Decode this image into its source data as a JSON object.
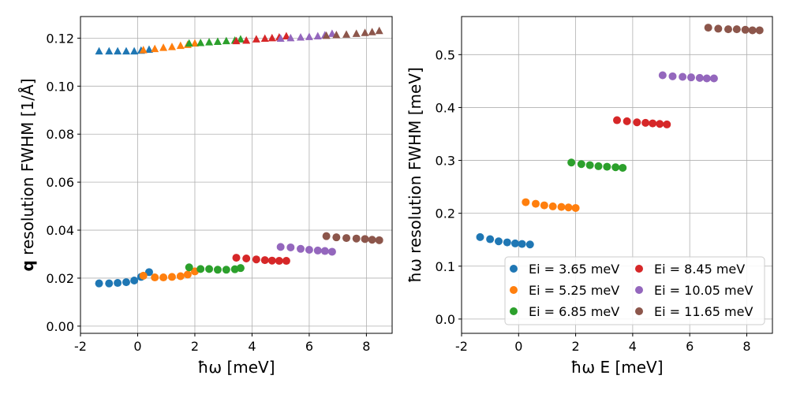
{
  "colors": {
    "series": [
      "#1f77b4",
      "#ff7f0e",
      "#2ca02c",
      "#d62728",
      "#9467bd",
      "#8c564b"
    ],
    "grid": "#b0b0b0",
    "axis": "#000000"
  },
  "legend": {
    "labels": [
      "Ei = 3.65 meV",
      "Ei = 5.25 meV",
      "Ei = 6.85 meV",
      "Ei = 8.45 meV",
      "Ei = 10.05 meV",
      "Ei = 11.65 meV"
    ]
  },
  "chart_data": [
    {
      "type": "scatter",
      "xlabel_bold": "q",
      "xlabel": "ħω [meV]",
      "ylabel_bold": "q",
      "ylabel": "resolution FWHM [1/Å]",
      "xlim": [
        -2,
        8.9
      ],
      "ylim": [
        -0.003,
        0.129
      ],
      "xticks": [
        -2,
        0,
        2,
        4,
        6,
        8
      ],
      "xtick_labels": [
        "-2",
        "0",
        "2",
        "4",
        "6",
        "8"
      ],
      "yticks": [
        0.0,
        0.02,
        0.04,
        0.06,
        0.08,
        0.1,
        0.12
      ],
      "ytick_labels": [
        "0.00",
        "0.02",
        "0.04",
        "0.06",
        "0.08",
        "0.10",
        "0.12"
      ],
      "grid": true,
      "series": [
        {
          "name": "Ei = 3.65 meV",
          "x": [
            -1.35,
            -1.0,
            -0.7,
            -0.4,
            -0.12,
            0.12,
            0.4
          ],
          "circles": [
            0.0178,
            0.0178,
            0.018,
            0.0183,
            0.019,
            0.0205,
            0.0225
          ],
          "triangles": [
            0.1145,
            0.1145,
            0.1145,
            0.1145,
            0.1145,
            0.1148,
            0.1152
          ]
        },
        {
          "name": "Ei = 5.25 meV",
          "x": [
            0.2,
            0.6,
            0.9,
            1.2,
            1.5,
            1.75,
            2.0
          ],
          "circles": [
            0.021,
            0.0203,
            0.0203,
            0.0205,
            0.0208,
            0.0215,
            0.0228
          ],
          "triangles": [
            0.115,
            0.1155,
            0.116,
            0.1163,
            0.1168,
            0.1172,
            0.1178
          ]
        },
        {
          "name": "Ei = 6.85 meV",
          "x": [
            1.8,
            2.2,
            2.5,
            2.8,
            3.1,
            3.4,
            3.6
          ],
          "circles": [
            0.0245,
            0.0238,
            0.0238,
            0.0235,
            0.0235,
            0.0237,
            0.0242
          ],
          "triangles": [
            0.1178,
            0.118,
            0.1183,
            0.1185,
            0.1188,
            0.119,
            0.1195
          ]
        },
        {
          "name": "Ei = 8.45 meV",
          "x": [
            3.45,
            3.8,
            4.15,
            4.45,
            4.7,
            4.95,
            5.2
          ],
          "circles": [
            0.0285,
            0.0282,
            0.0278,
            0.0275,
            0.0273,
            0.0272,
            0.0272
          ],
          "triangles": [
            0.1188,
            0.119,
            0.1195,
            0.1198,
            0.12,
            0.1203,
            0.1208
          ]
        },
        {
          "name": "Ei = 10.05 meV",
          "x": [
            5.0,
            5.35,
            5.7,
            6.0,
            6.3,
            6.55,
            6.8
          ],
          "circles": [
            0.033,
            0.0328,
            0.0322,
            0.0318,
            0.0315,
            0.0313,
            0.031
          ],
          "triangles": [
            0.1198,
            0.12,
            0.1203,
            0.1205,
            0.1208,
            0.1212,
            0.1218
          ]
        },
        {
          "name": "Ei = 11.65 meV",
          "x": [
            6.6,
            6.95,
            7.3,
            7.65,
            7.95,
            8.2,
            8.45
          ],
          "circles": [
            0.0375,
            0.037,
            0.0367,
            0.0365,
            0.0363,
            0.036,
            0.0358
          ],
          "triangles": [
            0.121,
            0.1213,
            0.1215,
            0.1218,
            0.1222,
            0.1225,
            0.123
          ]
        }
      ]
    },
    {
      "type": "scatter",
      "xlabel": "ħω E [meV]",
      "ylabel": "ħω resolution FWHM [meV]",
      "xlim": [
        -2,
        8.9
      ],
      "ylim": [
        -0.027,
        0.572
      ],
      "xticks": [
        -2,
        0,
        2,
        4,
        6,
        8
      ],
      "xtick_labels": [
        "-2",
        "0",
        "2",
        "4",
        "6",
        "8"
      ],
      "yticks": [
        0.0,
        0.1,
        0.2,
        0.3,
        0.4,
        0.5
      ],
      "ytick_labels": [
        "0.0",
        "0.1",
        "0.2",
        "0.3",
        "0.4",
        "0.5"
      ],
      "grid": true,
      "legend_loc": "lower-right",
      "series": [
        {
          "name": "Ei = 3.65 meV",
          "x": [
            -1.35,
            -1.0,
            -0.7,
            -0.4,
            -0.12,
            0.12,
            0.4
          ],
          "values": [
            0.155,
            0.151,
            0.147,
            0.145,
            0.143,
            0.142,
            0.141
          ]
        },
        {
          "name": "Ei = 5.25 meV",
          "x": [
            0.25,
            0.6,
            0.9,
            1.2,
            1.5,
            1.75,
            2.0
          ],
          "values": [
            0.221,
            0.218,
            0.215,
            0.213,
            0.212,
            0.211,
            0.21
          ]
        },
        {
          "name": "Ei = 6.85 meV",
          "x": [
            1.85,
            2.2,
            2.5,
            2.8,
            3.1,
            3.4,
            3.65
          ],
          "values": [
            0.296,
            0.293,
            0.291,
            0.289,
            0.288,
            0.287,
            0.286
          ]
        },
        {
          "name": "Ei = 8.45 meV",
          "x": [
            3.45,
            3.8,
            4.15,
            4.45,
            4.7,
            4.95,
            5.2
          ],
          "values": [
            0.376,
            0.374,
            0.372,
            0.371,
            0.37,
            0.369,
            0.368
          ]
        },
        {
          "name": "Ei = 10.05 meV",
          "x": [
            5.05,
            5.4,
            5.75,
            6.05,
            6.35,
            6.6,
            6.85
          ],
          "values": [
            0.461,
            0.459,
            0.458,
            0.457,
            0.456,
            0.455,
            0.455
          ]
        },
        {
          "name": "Ei = 11.65 meV",
          "x": [
            6.65,
            7.0,
            7.35,
            7.65,
            7.95,
            8.2,
            8.45
          ],
          "values": [
            0.551,
            0.549,
            0.548,
            0.548,
            0.547,
            0.546,
            0.546
          ]
        }
      ]
    }
  ]
}
